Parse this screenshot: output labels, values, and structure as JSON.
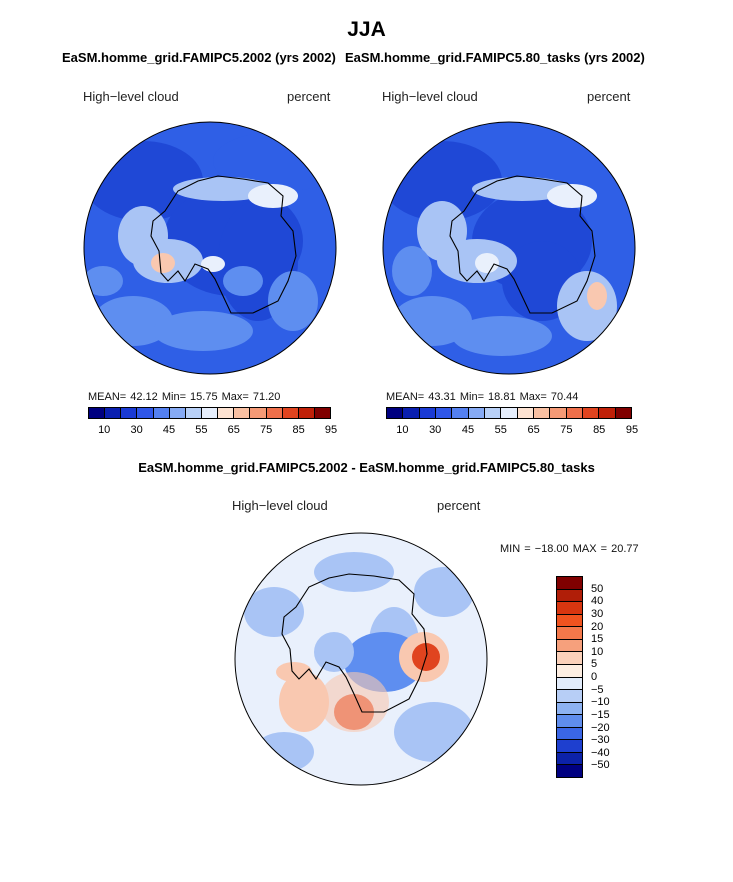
{
  "main_title": "JJA",
  "panels": [
    {
      "title": "EaSM.homme_grid.FAMIPC5.2002 (yrs 2002)",
      "left_label": "High−level cloud",
      "right_label": "percent",
      "stats": "MEAN=  42.12  Min=  15.75  Max=  71.20"
    },
    {
      "title": "EaSM.homme_grid.FAMIPC5.80_tasks (yrs 2002)",
      "left_label": "High−level cloud",
      "right_label": "percent",
      "stats": "MEAN=  43.31  Min=  18.81  Max=  70.44"
    }
  ],
  "colorbar": {
    "colors": [
      "#000080",
      "#0a1fb0",
      "#1a3ad4",
      "#2f56e8",
      "#5480f0",
      "#86aaf4",
      "#b8d0f7",
      "#e6eefc",
      "#fde3d2",
      "#f9c0a2",
      "#f59a76",
      "#ef6f4a",
      "#e0441f",
      "#c02008",
      "#800000"
    ],
    "ticks": [
      "10",
      "30",
      "45",
      "55",
      "65",
      "75",
      "85",
      "95"
    ]
  },
  "diff": {
    "title": "EaSM.homme_grid.FAMIPC5.2002 - EaSM.homme_grid.FAMIPC5.80_tasks",
    "left_label": "High−level cloud",
    "right_label": "percent",
    "minmax": "MIN = −18.00 MAX =  20.77",
    "colors": [
      "#800000",
      "#b01e08",
      "#d83610",
      "#f0531f",
      "#f4784a",
      "#f6a07c",
      "#fbd1ba",
      "#fdeee2",
      "#e2ecfb",
      "#b7cef6",
      "#8db2f2",
      "#5f8ded",
      "#3a66e6",
      "#1e3fcf",
      "#0c22a8",
      "#000080"
    ],
    "ticks": [
      "50",
      "40",
      "30",
      "20",
      "15",
      "10",
      "5",
      "0",
      "−5",
      "−10",
      "−15",
      "−20",
      "−30",
      "−40",
      "−50"
    ]
  },
  "map_colors": {
    "deep_blue": "#1f48d6",
    "mid_blue": "#2f5fe6",
    "light_blue": "#5e8ef0",
    "pale_blue": "#a9c4f5",
    "white": "#e9f0fc",
    "pale_red": "#f9c8b0",
    "red": "#e0441f",
    "coast": "#000000"
  }
}
